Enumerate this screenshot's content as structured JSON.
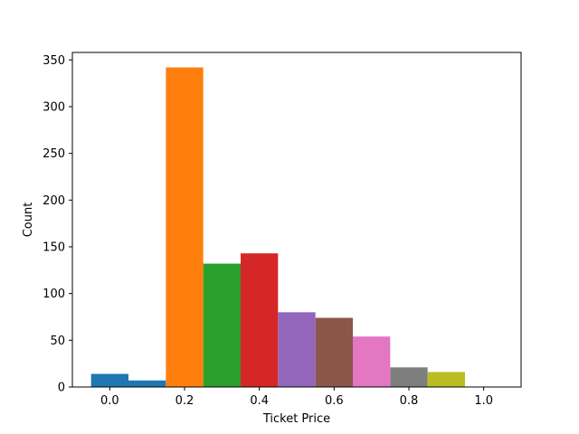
{
  "chart_data": {
    "type": "bar",
    "title": "",
    "xlabel": "Ticket Price",
    "ylabel": "Count",
    "xlim": [
      -0.1,
      1.1
    ],
    "ylim": [
      0,
      358
    ],
    "xticks": [
      0.0,
      0.2,
      0.4,
      0.6,
      0.8,
      1.0
    ],
    "xtick_labels": [
      "0.0",
      "0.2",
      "0.4",
      "0.6",
      "0.8",
      "1.0"
    ],
    "yticks": [
      0,
      50,
      100,
      150,
      200,
      250,
      300,
      350
    ],
    "ytick_labels": [
      "0",
      "50",
      "100",
      "150",
      "200",
      "250",
      "300",
      "350"
    ],
    "bar_width": 0.1,
    "grid": false,
    "legend": "none",
    "bars": [
      {
        "x": 0.0,
        "value": 14,
        "color": "#1f77b4"
      },
      {
        "x": 0.1,
        "value": 7,
        "color": "#1f77b4"
      },
      {
        "x": 0.2,
        "value": 342,
        "color": "#ff7f0e"
      },
      {
        "x": 0.3,
        "value": 132,
        "color": "#2ca02c"
      },
      {
        "x": 0.4,
        "value": 143,
        "color": "#d62728"
      },
      {
        "x": 0.5,
        "value": 80,
        "color": "#9467bd"
      },
      {
        "x": 0.6,
        "value": 74,
        "color": "#8c564b"
      },
      {
        "x": 0.7,
        "value": 54,
        "color": "#e377c2"
      },
      {
        "x": 0.8,
        "value": 21,
        "color": "#7f7f7f"
      },
      {
        "x": 0.9,
        "value": 16,
        "color": "#bcbd22"
      },
      {
        "x": 1.0,
        "value": 0,
        "color": "#17becf"
      }
    ]
  }
}
